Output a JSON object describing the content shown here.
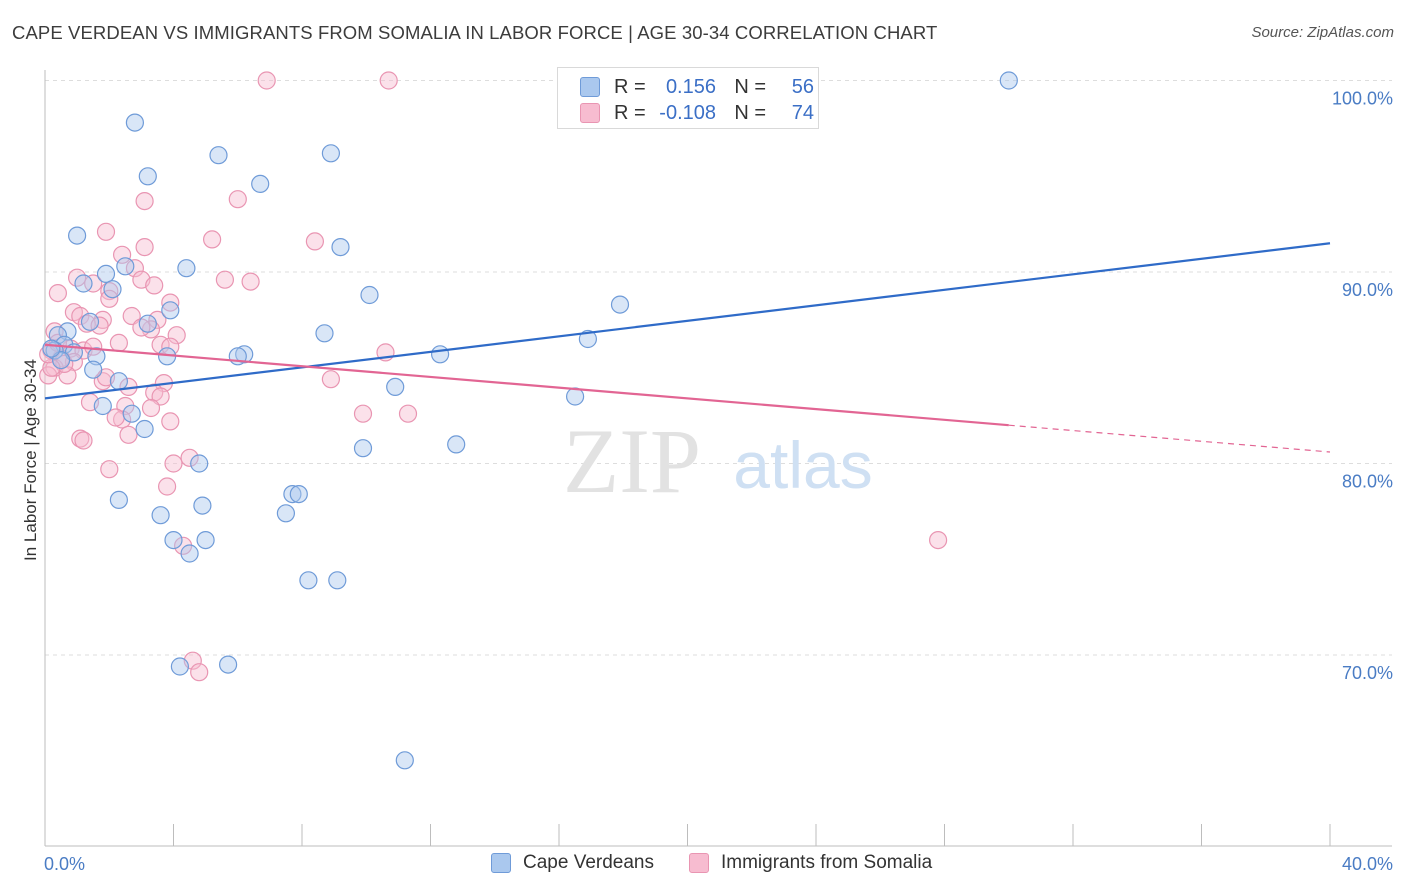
{
  "header": {
    "title": "CAPE VERDEAN VS IMMIGRANTS FROM SOMALIA IN LABOR FORCE | AGE 30-34 CORRELATION CHART",
    "source": "Source: ZipAtlas.com"
  },
  "watermark": {
    "zip": "ZIP",
    "atlas": "atlas"
  },
  "legend": {
    "series1": {
      "r_label": "R =",
      "r_value": "0.156",
      "n_label": "N =",
      "n_value": "56"
    },
    "series2": {
      "r_label": "R =",
      "r_value": "-0.108",
      "n_label": "N =",
      "n_value": "74"
    }
  },
  "chart_data": {
    "type": "scatter",
    "title": "CAPE VERDEAN VS IMMIGRANTS FROM SOMALIA IN LABOR FORCE | AGE 30-34 CORRELATION CHART",
    "xlabel": "",
    "ylabel": "In Labor Force | Age 30-34",
    "xlim": [
      0,
      40
    ],
    "ylim": [
      62,
      100.5
    ],
    "x_tick_labels": [
      "0.0%",
      "40.0%"
    ],
    "y_ticks": [
      70,
      80,
      90,
      100
    ],
    "y_tick_labels": [
      "70.0%",
      "80.0%",
      "90.0%",
      "100.0%"
    ],
    "grid": true,
    "legend_position": "top-center",
    "colors": {
      "series1_fill": "#aac8ee",
      "series1_stroke": "#6f9bd8",
      "series1_line": "#2f6bc8",
      "series2_fill": "#f7bcd0",
      "series2_stroke": "#e995b2",
      "series2_line": "#e26593"
    },
    "series": [
      {
        "name": "Cape Verdeans",
        "r": 0.156,
        "n": 56,
        "trend": {
          "x": [
            0,
            40
          ],
          "y": [
            83.4,
            91.5
          ],
          "dashed_from_x": null
        },
        "points": [
          [
            30.0,
            100.0
          ],
          [
            2.8,
            97.8
          ],
          [
            3.2,
            95.0
          ],
          [
            5.4,
            96.1
          ],
          [
            8.9,
            96.2
          ],
          [
            6.7,
            94.6
          ],
          [
            1.0,
            91.9
          ],
          [
            9.2,
            91.3
          ],
          [
            2.5,
            90.3
          ],
          [
            4.4,
            90.2
          ],
          [
            1.9,
            89.9
          ],
          [
            1.2,
            89.4
          ],
          [
            2.1,
            89.1
          ],
          [
            10.1,
            88.8
          ],
          [
            17.9,
            88.3
          ],
          [
            3.9,
            88.0
          ],
          [
            1.4,
            87.4
          ],
          [
            3.2,
            87.3
          ],
          [
            0.7,
            86.9
          ],
          [
            0.4,
            86.7
          ],
          [
            8.7,
            86.8
          ],
          [
            16.9,
            86.5
          ],
          [
            0.6,
            86.2
          ],
          [
            0.3,
            85.9
          ],
          [
            0.9,
            85.8
          ],
          [
            1.6,
            85.6
          ],
          [
            3.8,
            85.6
          ],
          [
            6.2,
            85.7
          ],
          [
            6.0,
            85.6
          ],
          [
            12.3,
            85.7
          ],
          [
            0.5,
            85.4
          ],
          [
            1.5,
            84.9
          ],
          [
            2.3,
            84.3
          ],
          [
            10.9,
            84.0
          ],
          [
            16.5,
            83.5
          ],
          [
            1.8,
            83.0
          ],
          [
            2.7,
            82.6
          ],
          [
            3.1,
            81.8
          ],
          [
            12.8,
            81.0
          ],
          [
            9.9,
            80.8
          ],
          [
            4.8,
            80.0
          ],
          [
            2.3,
            78.1
          ],
          [
            7.7,
            78.4
          ],
          [
            7.9,
            78.4
          ],
          [
            4.9,
            77.8
          ],
          [
            3.6,
            77.3
          ],
          [
            7.5,
            77.4
          ],
          [
            4.0,
            76.0
          ],
          [
            5.0,
            76.0
          ],
          [
            4.5,
            75.3
          ],
          [
            8.2,
            73.9
          ],
          [
            9.1,
            73.9
          ],
          [
            4.2,
            69.4
          ],
          [
            5.7,
            69.5
          ],
          [
            11.2,
            64.5
          ],
          [
            0.2,
            86.0
          ]
        ]
      },
      {
        "name": "Immigrants from Somalia",
        "r": -0.108,
        "n": 74,
        "trend": {
          "x": [
            0,
            40
          ],
          "y": [
            86.2,
            80.6
          ],
          "dashed_from_x": 30
        },
        "points": [
          [
            6.9,
            100.0
          ],
          [
            10.7,
            100.0
          ],
          [
            3.1,
            93.7
          ],
          [
            6.0,
            93.8
          ],
          [
            1.9,
            92.1
          ],
          [
            5.2,
            91.7
          ],
          [
            8.4,
            91.6
          ],
          [
            3.1,
            91.3
          ],
          [
            2.4,
            90.9
          ],
          [
            2.8,
            90.2
          ],
          [
            1.0,
            89.7
          ],
          [
            3.0,
            89.6
          ],
          [
            5.6,
            89.6
          ],
          [
            6.4,
            89.5
          ],
          [
            1.5,
            89.4
          ],
          [
            2.0,
            89.0
          ],
          [
            3.4,
            89.3
          ],
          [
            0.4,
            88.9
          ],
          [
            3.9,
            88.4
          ],
          [
            0.9,
            87.9
          ],
          [
            1.1,
            87.7
          ],
          [
            2.7,
            87.7
          ],
          [
            3.5,
            87.5
          ],
          [
            1.8,
            87.5
          ],
          [
            1.3,
            87.3
          ],
          [
            1.7,
            87.2
          ],
          [
            3.3,
            87.0
          ],
          [
            4.1,
            86.7
          ],
          [
            0.3,
            86.9
          ],
          [
            2.3,
            86.3
          ],
          [
            3.6,
            86.2
          ],
          [
            0.8,
            86.0
          ],
          [
            3.9,
            86.1
          ],
          [
            0.2,
            85.9
          ],
          [
            1.2,
            85.9
          ],
          [
            10.6,
            85.8
          ],
          [
            0.5,
            85.5
          ],
          [
            0.9,
            85.3
          ],
          [
            0.3,
            85.0
          ],
          [
            0.7,
            84.6
          ],
          [
            0.1,
            84.6
          ],
          [
            1.8,
            84.3
          ],
          [
            3.7,
            84.2
          ],
          [
            8.9,
            84.4
          ],
          [
            2.6,
            84.0
          ],
          [
            3.4,
            83.7
          ],
          [
            3.6,
            83.5
          ],
          [
            1.4,
            83.2
          ],
          [
            2.5,
            83.0
          ],
          [
            2.4,
            82.3
          ],
          [
            9.9,
            82.6
          ],
          [
            11.3,
            82.6
          ],
          [
            3.9,
            82.2
          ],
          [
            2.2,
            82.4
          ],
          [
            2.6,
            81.5
          ],
          [
            1.1,
            81.3
          ],
          [
            1.2,
            81.2
          ],
          [
            4.5,
            80.3
          ],
          [
            4.0,
            80.0
          ],
          [
            2.0,
            79.7
          ],
          [
            3.8,
            78.8
          ],
          [
            27.8,
            76.0
          ],
          [
            4.3,
            75.7
          ],
          [
            4.6,
            69.7
          ],
          [
            4.8,
            69.1
          ],
          [
            3.0,
            87.1
          ],
          [
            2.0,
            88.6
          ],
          [
            1.5,
            86.1
          ],
          [
            0.6,
            85.2
          ],
          [
            0.2,
            85.0
          ],
          [
            1.9,
            84.5
          ],
          [
            3.3,
            82.9
          ],
          [
            0.1,
            85.7
          ],
          [
            0.4,
            86.3
          ]
        ]
      }
    ]
  }
}
